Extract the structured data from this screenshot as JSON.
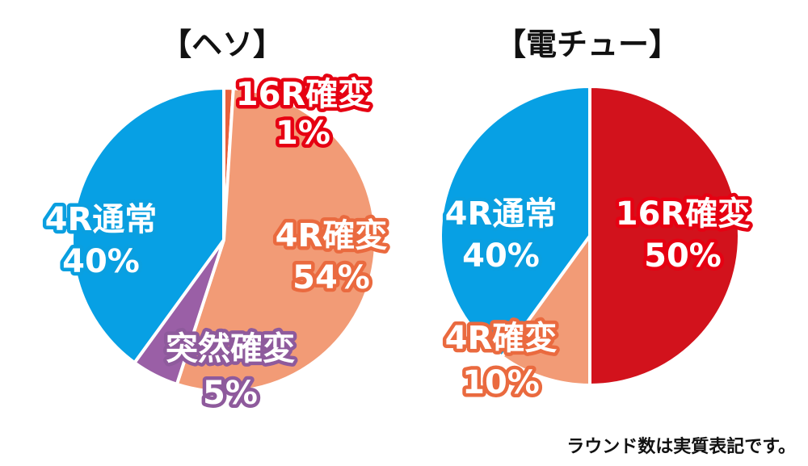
{
  "chart_data": [
    {
      "type": "pie",
      "title": "【ヘソ】",
      "slices": [
        {
          "label": "16R確変",
          "value": 1,
          "value_label": "1%",
          "color": "#e8603c",
          "stroke": "#e60012"
        },
        {
          "label": "4R確変",
          "value": 54,
          "value_label": "54%",
          "color": "#f29b76",
          "stroke": "#ea6a3f"
        },
        {
          "label": "突然確変",
          "value": 5,
          "value_label": "5%",
          "color": "#9a5fa6",
          "stroke": "#8e5a9c"
        },
        {
          "label": "4R通常",
          "value": 40,
          "value_label": "40%",
          "color": "#07a0e4",
          "stroke": "#0a9fe0"
        }
      ]
    },
    {
      "type": "pie",
      "title": "【電チュー】",
      "slices": [
        {
          "label": "16R確変",
          "value": 50,
          "value_label": "50%",
          "color": "#d2121c",
          "stroke": "#e60012"
        },
        {
          "label": "4R確変",
          "value": 10,
          "value_label": "10%",
          "color": "#f29b76",
          "stroke": "#ea6a3f"
        },
        {
          "label": "4R通常",
          "value": 40,
          "value_label": "40%",
          "color": "#07a0e4",
          "stroke": "#0a9fe0"
        }
      ]
    }
  ],
  "footnote": "ラウンド数は実質表記です。"
}
